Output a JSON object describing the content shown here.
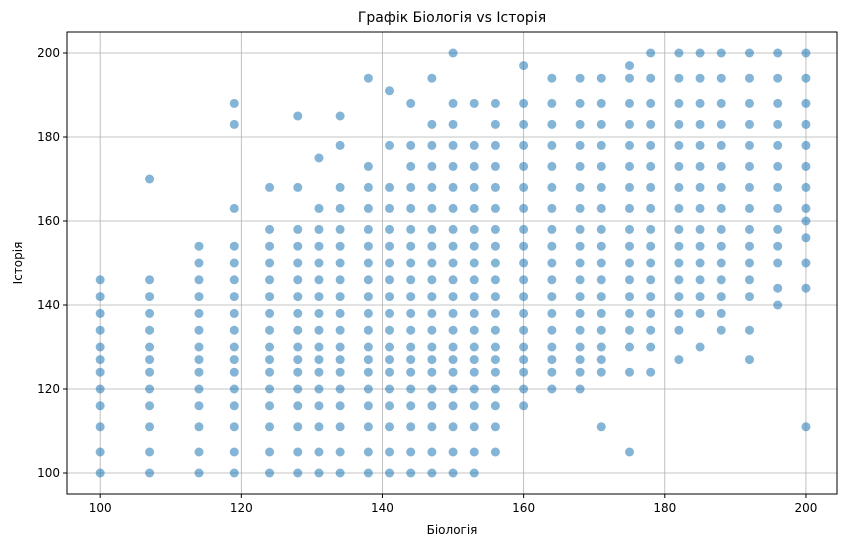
{
  "chart_data": {
    "type": "scatter",
    "title": "Графік Біологія vs Історія",
    "x_label": "Біологія",
    "y_label": "Історія",
    "color": "#1f77b4",
    "grid": true,
    "xlim": [
      95.3,
      204.4
    ],
    "ylim": [
      95,
      205
    ],
    "xticks": [
      100,
      120,
      140,
      160,
      180,
      200
    ],
    "yticks": [
      100,
      120,
      140,
      160,
      180,
      200
    ],
    "x": [
      100,
      100,
      100,
      100,
      100,
      100,
      100,
      100,
      100,
      100,
      100,
      100,
      107,
      107,
      107,
      107,
      107,
      107,
      107,
      107,
      107,
      107,
      107,
      107,
      107,
      114,
      114,
      114,
      114,
      114,
      114,
      114,
      114,
      114,
      114,
      114,
      114,
      114,
      114,
      119,
      119,
      119,
      119,
      119,
      119,
      119,
      119,
      119,
      119,
      119,
      119,
      119,
      119,
      119,
      119,
      119,
      124,
      124,
      124,
      124,
      124,
      124,
      124,
      124,
      124,
      124,
      124,
      124,
      124,
      124,
      124,
      124,
      128,
      128,
      128,
      128,
      128,
      128,
      128,
      128,
      128,
      128,
      128,
      128,
      128,
      128,
      128,
      128,
      128,
      131,
      131,
      131,
      131,
      131,
      131,
      131,
      131,
      131,
      131,
      131,
      131,
      131,
      131,
      131,
      131,
      131,
      134,
      134,
      134,
      134,
      134,
      134,
      134,
      134,
      134,
      134,
      134,
      134,
      134,
      134,
      134,
      134,
      134,
      134,
      134,
      138,
      138,
      138,
      138,
      138,
      138,
      138,
      138,
      138,
      138,
      138,
      138,
      138,
      138,
      138,
      138,
      138,
      138,
      138,
      141,
      141,
      141,
      141,
      141,
      141,
      141,
      141,
      141,
      141,
      141,
      141,
      141,
      141,
      141,
      141,
      141,
      141,
      141,
      144,
      144,
      144,
      144,
      144,
      144,
      144,
      144,
      144,
      144,
      144,
      144,
      144,
      144,
      144,
      144,
      144,
      144,
      144,
      144,
      147,
      147,
      147,
      147,
      147,
      147,
      147,
      147,
      147,
      147,
      147,
      147,
      147,
      147,
      147,
      147,
      147,
      147,
      147,
      147,
      147,
      150,
      150,
      150,
      150,
      150,
      150,
      150,
      150,
      150,
      150,
      150,
      150,
      150,
      150,
      150,
      150,
      150,
      150,
      150,
      150,
      150,
      150,
      153,
      153,
      153,
      153,
      153,
      153,
      153,
      153,
      153,
      153,
      153,
      153,
      153,
      153,
      153,
      153,
      153,
      153,
      153,
      153,
      156,
      156,
      156,
      156,
      156,
      156,
      156,
      156,
      156,
      156,
      156,
      156,
      156,
      156,
      156,
      156,
      156,
      156,
      156,
      156,
      160,
      160,
      160,
      160,
      160,
      160,
      160,
      160,
      160,
      160,
      160,
      160,
      160,
      160,
      160,
      160,
      160,
      160,
      160,
      164,
      164,
      164,
      164,
      164,
      164,
      164,
      164,
      164,
      164,
      164,
      164,
      164,
      164,
      164,
      164,
      164,
      164,
      168,
      168,
      168,
      168,
      168,
      168,
      168,
      168,
      168,
      168,
      168,
      168,
      168,
      168,
      168,
      168,
      168,
      168,
      171,
      171,
      171,
      171,
      171,
      171,
      171,
      171,
      171,
      171,
      171,
      171,
      171,
      171,
      171,
      171,
      171,
      171,
      175,
      175,
      175,
      175,
      175,
      175,
      175,
      175,
      175,
      175,
      175,
      175,
      175,
      175,
      175,
      175,
      175,
      175,
      178,
      178,
      178,
      178,
      178,
      178,
      178,
      178,
      178,
      178,
      178,
      178,
      178,
      178,
      178,
      178,
      178,
      182,
      182,
      182,
      182,
      182,
      182,
      182,
      182,
      182,
      182,
      182,
      182,
      182,
      182,
      182,
      182,
      185,
      185,
      185,
      185,
      185,
      185,
      185,
      185,
      185,
      185,
      185,
      185,
      185,
      185,
      185,
      188,
      188,
      188,
      188,
      188,
      188,
      188,
      188,
      188,
      188,
      188,
      188,
      188,
      188,
      188,
      192,
      192,
      192,
      192,
      192,
      192,
      192,
      192,
      192,
      192,
      192,
      192,
      192,
      192,
      192,
      196,
      196,
      196,
      196,
      196,
      196,
      196,
      196,
      196,
      196,
      196,
      196,
      196,
      200,
      200,
      200,
      200,
      200,
      200,
      200,
      200,
      200,
      200,
      200,
      200,
      200
    ],
    "values": [
      100,
      105,
      111,
      116,
      120,
      124,
      127,
      130,
      134,
      138,
      142,
      146,
      100,
      105,
      111,
      116,
      120,
      124,
      127,
      130,
      134,
      138,
      142,
      146,
      170,
      100,
      105,
      111,
      116,
      120,
      124,
      127,
      130,
      134,
      138,
      142,
      146,
      150,
      154,
      100,
      105,
      111,
      116,
      120,
      124,
      127,
      130,
      134,
      138,
      142,
      146,
      150,
      154,
      163,
      183,
      188,
      100,
      105,
      111,
      116,
      120,
      124,
      127,
      130,
      134,
      138,
      142,
      146,
      150,
      154,
      158,
      168,
      100,
      105,
      111,
      116,
      120,
      124,
      127,
      130,
      134,
      138,
      142,
      146,
      150,
      154,
      158,
      168,
      185,
      100,
      105,
      111,
      116,
      120,
      124,
      127,
      130,
      134,
      138,
      142,
      146,
      150,
      154,
      158,
      163,
      175,
      100,
      105,
      111,
      116,
      120,
      124,
      127,
      130,
      134,
      138,
      142,
      146,
      150,
      154,
      158,
      163,
      168,
      178,
      185,
      100,
      105,
      111,
      116,
      120,
      124,
      127,
      130,
      134,
      138,
      142,
      146,
      150,
      154,
      158,
      163,
      168,
      173,
      194,
      100,
      105,
      111,
      116,
      120,
      124,
      127,
      130,
      134,
      138,
      142,
      146,
      150,
      154,
      158,
      163,
      168,
      178,
      191,
      100,
      105,
      111,
      116,
      120,
      124,
      127,
      130,
      134,
      138,
      142,
      146,
      150,
      154,
      158,
      163,
      168,
      173,
      178,
      188,
      100,
      105,
      111,
      116,
      120,
      124,
      127,
      130,
      134,
      138,
      142,
      146,
      150,
      154,
      158,
      163,
      168,
      173,
      178,
      183,
      194,
      100,
      105,
      111,
      116,
      120,
      124,
      127,
      130,
      134,
      138,
      142,
      146,
      150,
      154,
      158,
      163,
      168,
      173,
      178,
      183,
      188,
      200,
      100,
      105,
      111,
      116,
      120,
      124,
      127,
      130,
      134,
      138,
      142,
      146,
      150,
      154,
      158,
      163,
      168,
      173,
      178,
      188,
      105,
      111,
      116,
      120,
      124,
      127,
      130,
      134,
      138,
      142,
      146,
      150,
      154,
      158,
      163,
      168,
      173,
      178,
      183,
      188,
      116,
      120,
      124,
      127,
      130,
      134,
      138,
      142,
      146,
      150,
      154,
      158,
      163,
      168,
      173,
      178,
      183,
      188,
      197,
      120,
      124,
      127,
      130,
      134,
      138,
      142,
      146,
      150,
      154,
      158,
      163,
      168,
      173,
      178,
      183,
      188,
      194,
      120,
      124,
      127,
      130,
      134,
      138,
      142,
      146,
      150,
      154,
      158,
      163,
      168,
      173,
      178,
      183,
      188,
      194,
      111,
      124,
      127,
      130,
      134,
      138,
      142,
      146,
      150,
      154,
      158,
      163,
      168,
      173,
      178,
      183,
      188,
      194,
      105,
      124,
      130,
      134,
      138,
      142,
      146,
      150,
      154,
      158,
      163,
      168,
      173,
      178,
      183,
      188,
      194,
      197,
      124,
      130,
      134,
      138,
      142,
      146,
      150,
      154,
      158,
      163,
      168,
      173,
      178,
      183,
      188,
      194,
      200,
      127,
      134,
      138,
      142,
      146,
      150,
      154,
      158,
      163,
      168,
      173,
      178,
      183,
      188,
      194,
      200,
      130,
      138,
      142,
      146,
      150,
      154,
      158,
      163,
      168,
      173,
      178,
      183,
      188,
      194,
      200,
      134,
      138,
      142,
      146,
      150,
      154,
      158,
      163,
      168,
      173,
      178,
      183,
      188,
      194,
      200,
      127,
      134,
      142,
      146,
      150,
      154,
      158,
      163,
      168,
      173,
      178,
      183,
      188,
      194,
      200,
      140,
      144,
      150,
      154,
      158,
      163,
      168,
      173,
      178,
      183,
      188,
      194,
      200,
      111,
      144,
      150,
      156,
      160,
      163,
      168,
      173,
      178,
      183,
      188,
      194,
      200
    ]
  }
}
